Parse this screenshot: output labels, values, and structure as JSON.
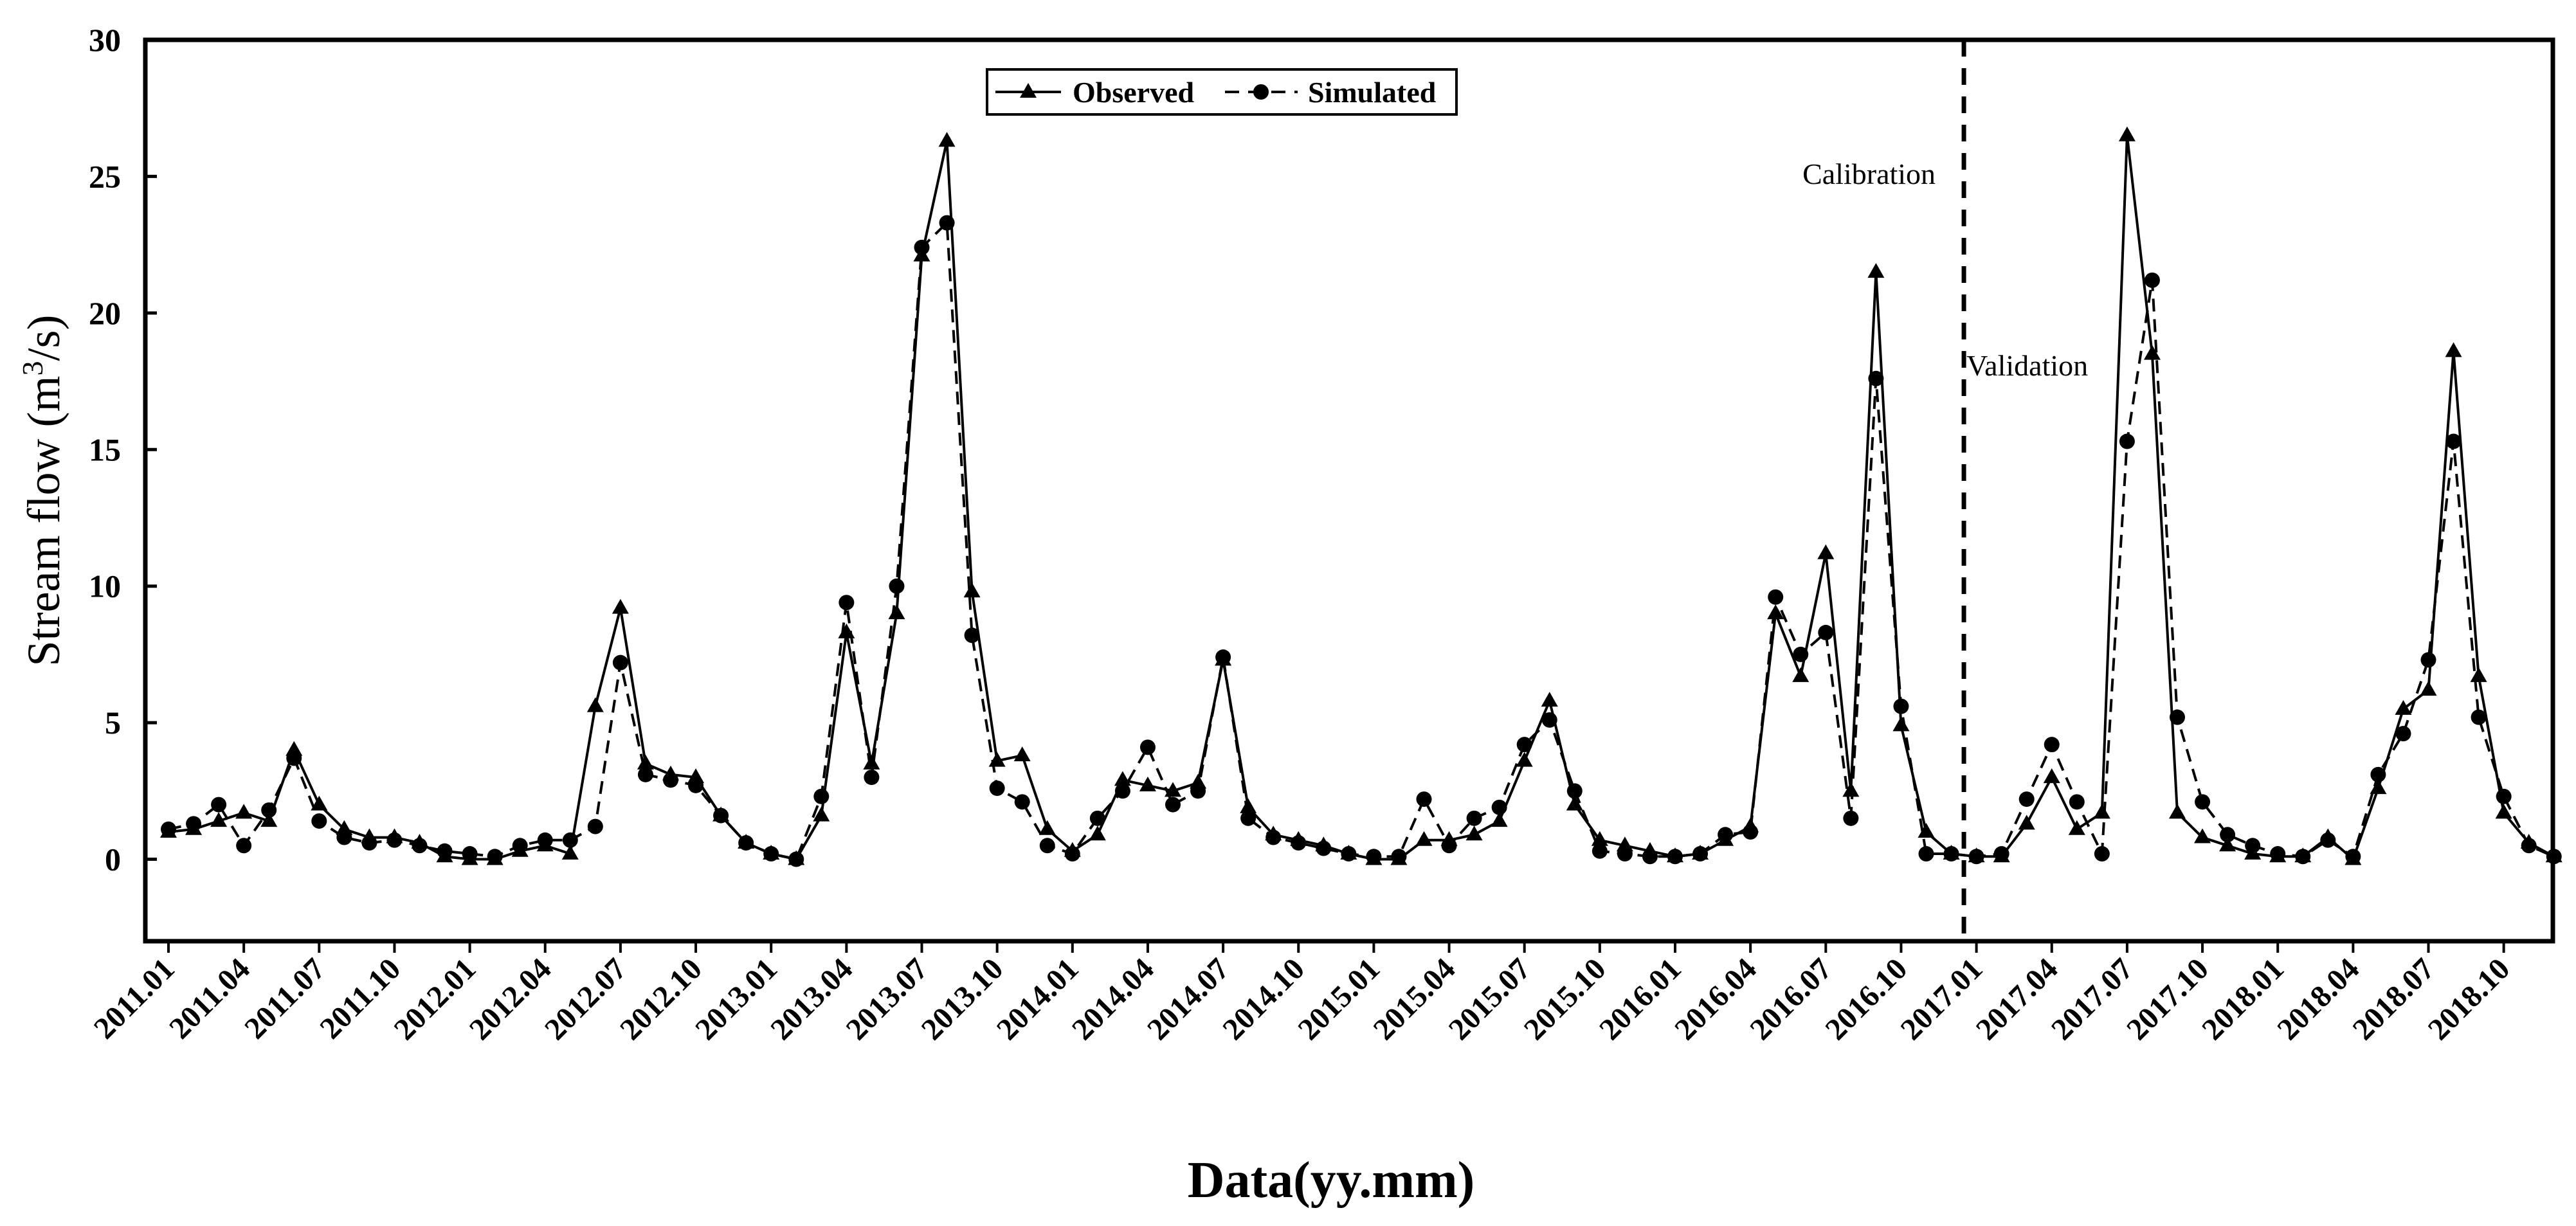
{
  "chart_data": {
    "type": "line",
    "title": "",
    "ylabel": "Stream flow (m",
    "ylabel_sup": "3",
    "ylabel_tail": "/s)",
    "xlabel": "Data(yy.mm)",
    "ylim": [
      -3,
      30
    ],
    "yticks": [
      0,
      5,
      10,
      15,
      20,
      25,
      30
    ],
    "grid": false,
    "legend": "top-left",
    "x_tick_labels": [
      "2011.01",
      "2011.04",
      "2011.07",
      "2011.10",
      "2012.01",
      "2012.04",
      "2012.07",
      "2012.10",
      "2013.01",
      "2013.04",
      "2013.07",
      "2013.10",
      "2014.01",
      "2014.04",
      "2014.07",
      "2014.10",
      "2015.01",
      "2015.04",
      "2015.07",
      "2015.10",
      "2016.01",
      "2016.04",
      "2016.07",
      "2016.10",
      "2017.01",
      "2017.04",
      "2017.07",
      "2017.10",
      "2018.01",
      "2018.04",
      "2018.07",
      "2018.10"
    ],
    "divider_after_month_index": 71,
    "annotations": {
      "calibration": "Calibration",
      "validation": "Validation"
    },
    "series": [
      {
        "name": "Observed",
        "marker": "triangle",
        "style": "solid",
        "values": [
          1.0,
          1.1,
          1.4,
          1.7,
          1.4,
          4.0,
          2.0,
          1.1,
          0.8,
          0.8,
          0.6,
          0.1,
          0.0,
          0.0,
          0.3,
          0.5,
          0.2,
          5.6,
          9.2,
          3.5,
          3.1,
          3.0,
          1.6,
          0.6,
          0.2,
          0.0,
          1.6,
          8.3,
          3.5,
          9.0,
          22.1,
          26.3,
          9.8,
          3.6,
          3.8,
          1.1,
          0.3,
          0.9,
          2.9,
          2.7,
          2.5,
          2.8,
          7.3,
          1.9,
          0.9,
          0.7,
          0.5,
          0.2,
          0.0,
          0.0,
          0.7,
          0.7,
          0.9,
          1.4,
          3.6,
          5.8,
          2.0,
          0.7,
          0.5,
          0.3,
          0.1,
          0.2,
          0.7,
          1.2,
          9.0,
          6.7,
          11.2,
          2.5,
          21.5,
          4.9,
          1.0,
          0.2,
          0.1,
          0.1,
          1.3,
          3.0,
          1.1,
          1.7,
          26.5,
          18.5,
          1.7,
          0.8,
          0.5,
          0.2,
          0.1,
          0.1,
          0.8,
          0.0,
          2.6,
          5.5,
          6.2,
          18.6,
          6.7,
          1.7,
          0.6,
          0.1
        ]
      },
      {
        "name": "Simulated",
        "marker": "circle",
        "style": "dashed",
        "values": [
          1.1,
          1.3,
          2.0,
          0.5,
          1.8,
          3.7,
          1.4,
          0.8,
          0.6,
          0.7,
          0.5,
          0.3,
          0.2,
          0.1,
          0.5,
          0.7,
          0.7,
          1.2,
          7.2,
          3.1,
          2.9,
          2.7,
          1.6,
          0.6,
          0.2,
          0.0,
          2.3,
          9.4,
          3.0,
          10.0,
          22.4,
          23.3,
          8.2,
          2.6,
          2.1,
          0.5,
          0.2,
          1.5,
          2.5,
          4.1,
          2.0,
          2.5,
          7.4,
          1.5,
          0.8,
          0.6,
          0.4,
          0.2,
          0.1,
          0.1,
          2.2,
          0.5,
          1.5,
          1.9,
          4.2,
          5.1,
          2.5,
          0.3,
          0.2,
          0.1,
          0.1,
          0.2,
          0.9,
          1.0,
          9.6,
          7.5,
          8.3,
          1.5,
          17.6,
          5.6,
          0.2,
          0.2,
          0.1,
          0.2,
          2.2,
          4.2,
          2.1,
          0.2,
          15.3,
          21.2,
          5.2,
          2.1,
          0.9,
          0.5,
          0.2,
          0.1,
          0.7,
          0.1,
          3.1,
          4.6,
          7.3,
          15.3,
          5.2,
          2.3,
          0.5,
          0.1
        ]
      }
    ]
  }
}
